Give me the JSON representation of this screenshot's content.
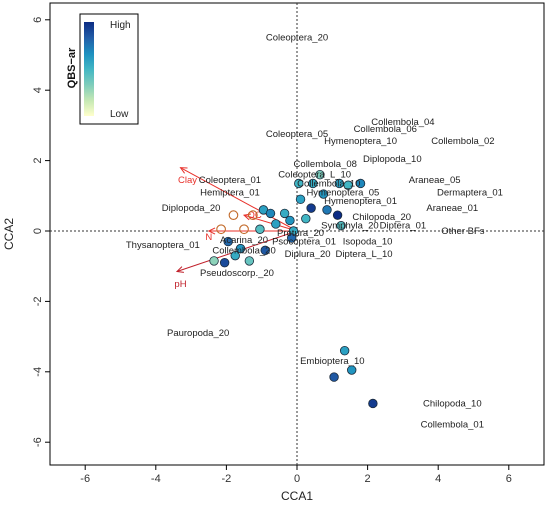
{
  "chart_data": {
    "type": "scatter",
    "title": "",
    "xlabel": "CCA1",
    "ylabel": "CCA2",
    "xlim": [
      -7,
      7
    ],
    "ylim": [
      -6.6,
      6.6
    ],
    "xticks": [
      "-6",
      "-4",
      "-2",
      "0",
      "2",
      "4",
      "6"
    ],
    "yticks": [
      "-6",
      "-4",
      "-2",
      "0",
      "2",
      "4",
      "6"
    ],
    "grid": false,
    "reference_lines": {
      "x": 0,
      "y": 0
    },
    "legend": {
      "title": "QBS−ar",
      "high_label": "High",
      "low_label": "Low",
      "placement": "top-left",
      "colors": [
        "#ffffcc",
        "#c7e9b4",
        "#7fcdbb",
        "#41b6c4",
        "#1d91c0",
        "#225ea8",
        "#0c2c84"
      ]
    },
    "env_vectors": [
      {
        "label": "Clay",
        "x": -3.3,
        "y": 1.8,
        "label_x": -3.1,
        "label_y": 1.45,
        "color": "#e8302a"
      },
      {
        "label": "N",
        "x": -2.5,
        "y": 0.0,
        "label_x": -2.5,
        "label_y": -0.17,
        "color": "#e8302a"
      },
      {
        "label": "OC",
        "x": -1.5,
        "y": 0.45,
        "label_x": -1.2,
        "label_y": 0.45,
        "color": "#e8302a"
      },
      {
        "label": "pH",
        "x": -3.4,
        "y": -1.15,
        "label_x": -3.3,
        "label_y": -1.5,
        "color": "#c0202a"
      }
    ],
    "species_labels": [
      {
        "label": "Coleoptera_20",
        "x": 0.0,
        "y": 5.5
      },
      {
        "label": "Collembola_04",
        "x": 3.0,
        "y": 3.1
      },
      {
        "label": "Collembola_06",
        "x": 2.5,
        "y": 2.9
      },
      {
        "label": "Coleoptera_05",
        "x": 0.0,
        "y": 2.75
      },
      {
        "label": "Hymenoptera_10",
        "x": 1.8,
        "y": 2.55
      },
      {
        "label": "Collembola_02",
        "x": 4.7,
        "y": 2.55
      },
      {
        "label": "Diplopoda_10",
        "x": 2.7,
        "y": 2.05
      },
      {
        "label": "Collembola_08",
        "x": 0.8,
        "y": 1.9
      },
      {
        "label": "Coleoptera_L_10",
        "x": 0.5,
        "y": 1.6
      },
      {
        "label": "Coleoptera_01",
        "x": -1.9,
        "y": 1.45
      },
      {
        "label": "Collembola_10",
        "x": 0.9,
        "y": 1.35
      },
      {
        "label": "Araneae_05",
        "x": 3.9,
        "y": 1.45
      },
      {
        "label": "Hemiptera_01",
        "x": -1.9,
        "y": 1.1
      },
      {
        "label": "Hymenoptera_05",
        "x": 1.3,
        "y": 1.1
      },
      {
        "label": "Dermaptera_01",
        "x": 4.9,
        "y": 1.1
      },
      {
        "label": "Hymenoptera_01",
        "x": 1.8,
        "y": 0.85
      },
      {
        "label": "Diplopoda_20",
        "x": -3.0,
        "y": 0.65
      },
      {
        "label": "Araneae_01",
        "x": 4.4,
        "y": 0.65
      },
      {
        "label": "Chilopoda_20",
        "x": 2.4,
        "y": 0.4
      },
      {
        "label": "Symphyla_20",
        "x": 1.5,
        "y": 0.15
      },
      {
        "label": "Diptera_01",
        "x": 3.0,
        "y": 0.15
      },
      {
        "label": "Other BFs",
        "x": 4.7,
        "y": 0.0
      },
      {
        "label": "Protura_20",
        "x": 0.1,
        "y": -0.05
      },
      {
        "label": "Acarina_20",
        "x": -1.5,
        "y": -0.25
      },
      {
        "label": "Psocoptera_01",
        "x": 0.2,
        "y": -0.3
      },
      {
        "label": "Isopoda_10",
        "x": 2.0,
        "y": -0.3
      },
      {
        "label": "Thysanoptera_01",
        "x": -3.8,
        "y": -0.4
      },
      {
        "label": "Collembola_20",
        "x": -1.5,
        "y": -0.55
      },
      {
        "label": "Diplura_20",
        "x": 0.3,
        "y": -0.65
      },
      {
        "label": "Diptera_L_10",
        "x": 1.9,
        "y": -0.65
      },
      {
        "label": "Pseudoscorp._20",
        "x": -1.7,
        "y": -1.2
      },
      {
        "label": "Pauropoda_20",
        "x": -2.8,
        "y": -2.9
      },
      {
        "label": "Embioptera_10",
        "x": 1.0,
        "y": -3.7
      },
      {
        "label": "Chilopoda_10",
        "x": 4.4,
        "y": -4.9
      },
      {
        "label": "Collembola_01",
        "x": 4.4,
        "y": -5.5
      }
    ],
    "sites": [
      {
        "x": -1.8,
        "y": 0.45,
        "v": 0.05,
        "open": true
      },
      {
        "x": -2.15,
        "y": 0.05,
        "v": 0.1,
        "open": true
      },
      {
        "x": -1.25,
        "y": 0.45,
        "v": 0.15,
        "open": true
      },
      {
        "x": -1.5,
        "y": 0.05,
        "v": 0.25,
        "open": true
      },
      {
        "x": -2.35,
        "y": -0.85,
        "v": 0.3
      },
      {
        "x": -1.35,
        "y": -0.85,
        "v": 0.4
      },
      {
        "x": -2.05,
        "y": -0.9,
        "v": 0.9
      },
      {
        "x": -1.75,
        "y": -0.7,
        "v": 0.55
      },
      {
        "x": -1.95,
        "y": -0.3,
        "v": 0.8
      },
      {
        "x": -1.6,
        "y": -0.5,
        "v": 0.65
      },
      {
        "x": -0.9,
        "y": -0.55,
        "v": 0.85
      },
      {
        "x": -1.05,
        "y": 0.05,
        "v": 0.45
      },
      {
        "x": -0.95,
        "y": 0.6,
        "v": 0.6
      },
      {
        "x": -0.75,
        "y": 0.5,
        "v": 0.7
      },
      {
        "x": -0.6,
        "y": 0.2,
        "v": 0.6
      },
      {
        "x": -0.35,
        "y": 0.5,
        "v": 0.55
      },
      {
        "x": -0.2,
        "y": 0.3,
        "v": 0.65
      },
      {
        "x": -0.1,
        "y": 0.0,
        "v": 0.55
      },
      {
        "x": -0.15,
        "y": -0.2,
        "v": 0.8
      },
      {
        "x": 0.05,
        "y": 1.35,
        "v": 0.5
      },
      {
        "x": 0.1,
        "y": 0.9,
        "v": 0.6
      },
      {
        "x": 0.25,
        "y": 0.35,
        "v": 0.5
      },
      {
        "x": 0.4,
        "y": 0.65,
        "v": 0.95
      },
      {
        "x": 0.45,
        "y": 1.35,
        "v": 0.55
      },
      {
        "x": 0.65,
        "y": 1.6,
        "v": 0.35
      },
      {
        "x": 0.75,
        "y": 1.05,
        "v": 0.65
      },
      {
        "x": 0.85,
        "y": 0.6,
        "v": 0.75
      },
      {
        "x": 1.15,
        "y": 0.45,
        "v": 1.0
      },
      {
        "x": 1.2,
        "y": 1.35,
        "v": 0.6
      },
      {
        "x": 1.45,
        "y": 1.3,
        "v": 0.5
      },
      {
        "x": 1.25,
        "y": 0.15,
        "v": 0.45
      },
      {
        "x": 1.8,
        "y": 1.35,
        "v": 0.7
      },
      {
        "x": 1.35,
        "y": -3.4,
        "v": 0.6
      },
      {
        "x": 1.55,
        "y": -3.95,
        "v": 0.65
      },
      {
        "x": 1.05,
        "y": -4.15,
        "v": 0.85
      },
      {
        "x": 2.15,
        "y": -4.9,
        "v": 0.95
      }
    ]
  }
}
